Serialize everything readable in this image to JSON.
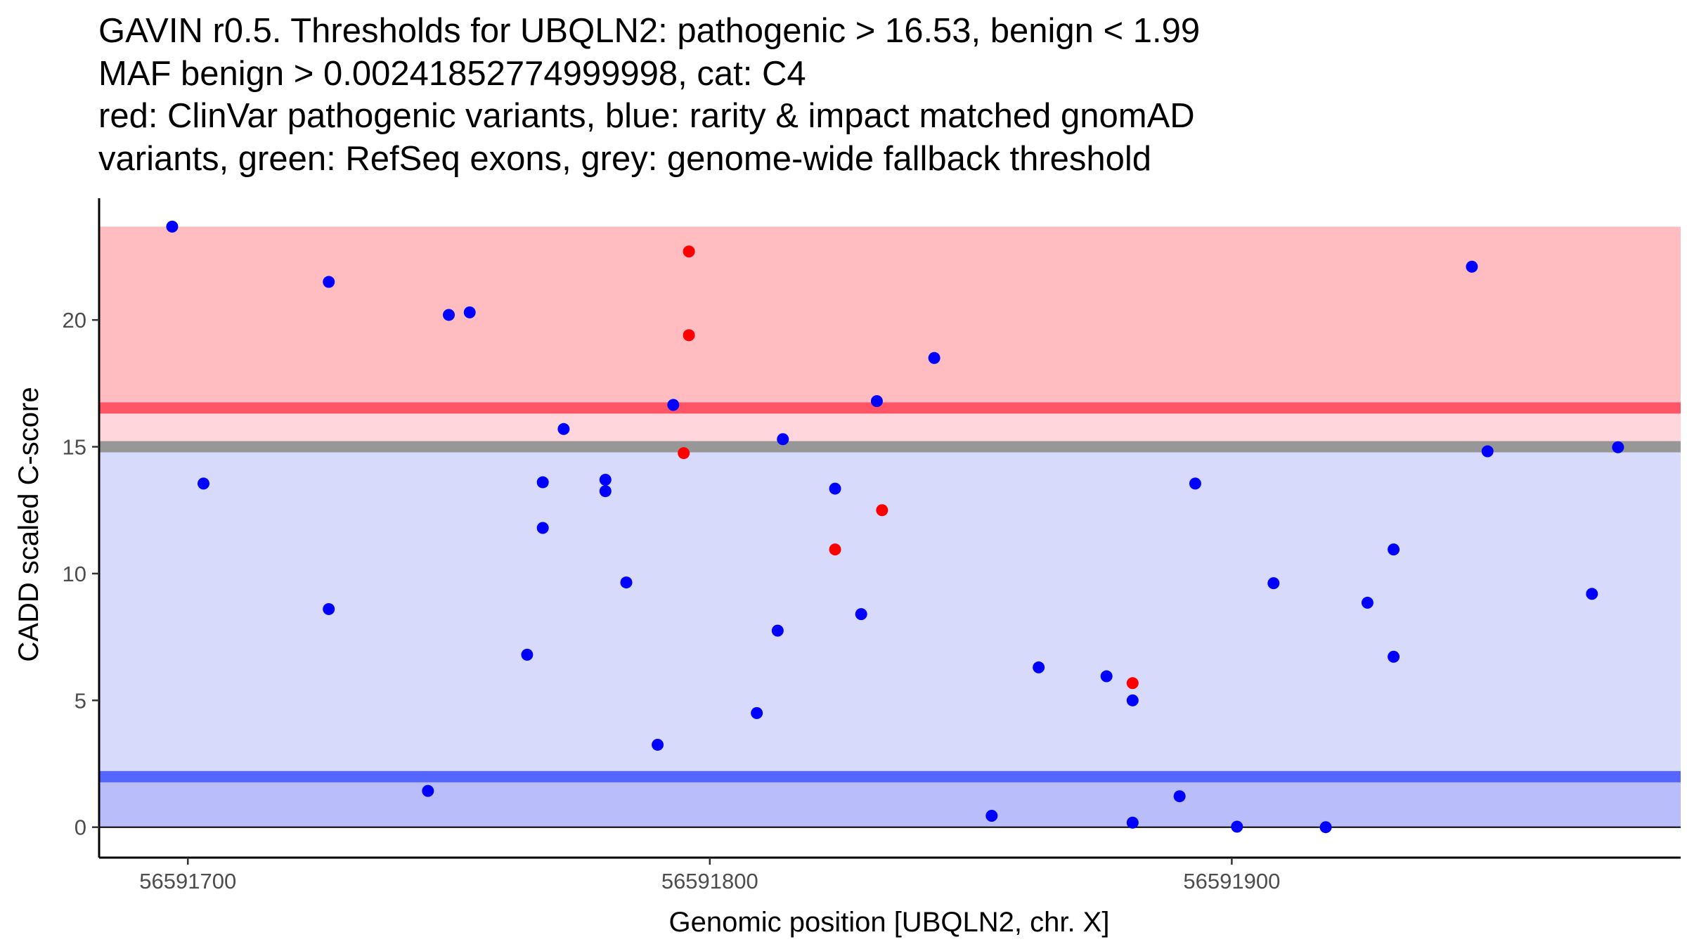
{
  "chart_data": {
    "type": "scatter",
    "title_lines": [
      "GAVIN r0.5. Thresholds for UBQLN2: pathogenic > 16.53, benign < 1.99",
      "MAF benign > 0.00241852774999998, cat: C4",
      "red: ClinVar pathogenic variants, blue: rarity & impact matched gnomAD",
      "variants, green: RefSeq exons, grey: genome-wide fallback threshold"
    ],
    "xlabel": "Genomic position [UBQLN2, chr. X]",
    "ylabel": "CADD scaled C-score",
    "xlim": [
      56591683,
      56591986
    ],
    "ylim": [
      -1.2,
      24.8
    ],
    "xticks": [
      56591700,
      56591800,
      56591900
    ],
    "xtick_labels": [
      "56591700",
      "56591800",
      "56591900"
    ],
    "yticks": [
      0,
      5,
      10,
      15,
      20
    ],
    "ytick_labels": [
      "0",
      "5",
      "10",
      "15",
      "20"
    ],
    "grid": false,
    "bands": [
      {
        "name": "pathogenic-zone",
        "y0": 16.53,
        "y1": 23.68,
        "color": "#ffbcc1"
      },
      {
        "name": "intermediate-zone",
        "y0": 15.0,
        "y1": 16.53,
        "color": "#ffd6dc"
      },
      {
        "name": "moderate-zone",
        "y0": 1.99,
        "y1": 15.0,
        "color": "#d7dafb"
      },
      {
        "name": "benign-zone",
        "y0": 0,
        "y1": 1.99,
        "color": "#b9befb"
      }
    ],
    "threshold_lines": [
      {
        "name": "pathogenic-threshold",
        "y": 16.53,
        "color": "#ff5566"
      },
      {
        "name": "fallback-threshold",
        "y": 15.0,
        "color": "#979797"
      },
      {
        "name": "benign-threshold",
        "y": 1.99,
        "color": "#5566ff"
      }
    ],
    "zero_line": {
      "y": 0,
      "color": "#000000"
    },
    "series": [
      {
        "name": "ClinVar pathogenic",
        "color": "#ff0000",
        "points": [
          {
            "x": 56591796,
            "y": 22.7
          },
          {
            "x": 56591796,
            "y": 19.4
          },
          {
            "x": 56591795,
            "y": 14.75
          },
          {
            "x": 56591833,
            "y": 12.5
          },
          {
            "x": 56591824,
            "y": 10.95
          },
          {
            "x": 56591881,
            "y": 5.68
          }
        ]
      },
      {
        "name": "gnomAD matched",
        "color": "#0000ff",
        "points": [
          {
            "x": 56591697,
            "y": 23.68
          },
          {
            "x": 56591703,
            "y": 13.55
          },
          {
            "x": 56591727,
            "y": 21.5
          },
          {
            "x": 56591727,
            "y": 8.6
          },
          {
            "x": 56591746,
            "y": 1.43
          },
          {
            "x": 56591750,
            "y": 20.2
          },
          {
            "x": 56591754,
            "y": 20.3
          },
          {
            "x": 56591765,
            "y": 6.8
          },
          {
            "x": 56591768,
            "y": 13.6
          },
          {
            "x": 56591768,
            "y": 11.8
          },
          {
            "x": 56591772,
            "y": 15.7
          },
          {
            "x": 56591780,
            "y": 13.7
          },
          {
            "x": 56591780,
            "y": 13.25
          },
          {
            "x": 56591784,
            "y": 9.65
          },
          {
            "x": 56591790,
            "y": 3.25
          },
          {
            "x": 56591793,
            "y": 16.65
          },
          {
            "x": 56591809,
            "y": 4.5
          },
          {
            "x": 56591813,
            "y": 7.75
          },
          {
            "x": 56591814,
            "y": 15.3
          },
          {
            "x": 56591824,
            "y": 13.35
          },
          {
            "x": 56591829,
            "y": 8.4
          },
          {
            "x": 56591832,
            "y": 16.8
          },
          {
            "x": 56591843,
            "y": 18.5
          },
          {
            "x": 56591854,
            "y": 0.45
          },
          {
            "x": 56591863,
            "y": 6.3
          },
          {
            "x": 56591876,
            "y": 5.95
          },
          {
            "x": 56591881,
            "y": 5.0
          },
          {
            "x": 56591881,
            "y": 0.18
          },
          {
            "x": 56591890,
            "y": 1.22
          },
          {
            "x": 56591893,
            "y": 13.55
          },
          {
            "x": 56591901,
            "y": 0.02
          },
          {
            "x": 56591908,
            "y": 9.62
          },
          {
            "x": 56591918,
            "y": 0.0
          },
          {
            "x": 56591926,
            "y": 8.85
          },
          {
            "x": 56591931,
            "y": 10.95
          },
          {
            "x": 56591931,
            "y": 6.72
          },
          {
            "x": 56591946,
            "y": 22.1
          },
          {
            "x": 56591949,
            "y": 14.82
          },
          {
            "x": 56591969,
            "y": 9.2
          },
          {
            "x": 56591974,
            "y": 14.98
          }
        ]
      }
    ]
  }
}
